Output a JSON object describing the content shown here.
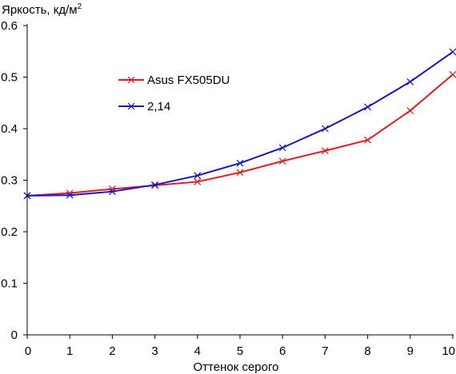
{
  "chart_data": {
    "type": "line",
    "ylabel": "Яркость, кд/м",
    "ylabel_sup": "2",
    "xlabel": "Оттенок серого",
    "xlim": [
      0,
      10
    ],
    "ylim": [
      0,
      0.6
    ],
    "x_ticks": [
      "0",
      "1",
      "2",
      "3",
      "4",
      "5",
      "6",
      "7",
      "8",
      "9",
      "10"
    ],
    "y_ticks": [
      "0",
      "0.1",
      "0.2",
      "0.3",
      "0.4",
      "0.5",
      "0.6"
    ],
    "grid": false,
    "legend_position": "upper-left",
    "x": [
      0,
      1,
      2,
      3,
      4,
      5,
      6,
      7,
      8,
      9,
      10
    ],
    "series": [
      {
        "name": "Asus FX505DU",
        "color": "#e8191c",
        "marker": "x",
        "values": [
          0.27,
          0.275,
          0.283,
          0.29,
          0.297,
          0.315,
          0.337,
          0.357,
          0.378,
          0.435,
          0.505
        ]
      },
      {
        "name": "2,14",
        "color": "#1515c8",
        "marker": "x",
        "values": [
          0.27,
          0.271,
          0.278,
          0.291,
          0.309,
          0.333,
          0.363,
          0.4,
          0.442,
          0.491,
          0.549
        ]
      }
    ]
  }
}
